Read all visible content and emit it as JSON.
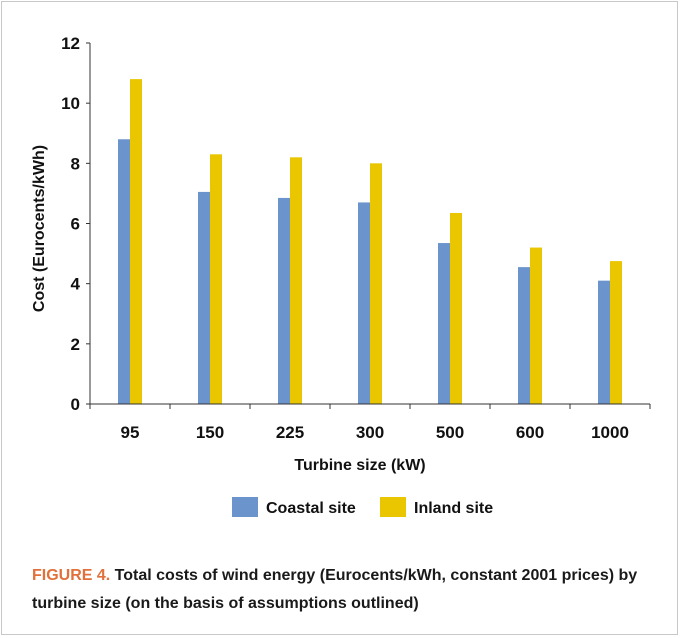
{
  "chart_data": {
    "type": "bar",
    "categories": [
      "95",
      "150",
      "225",
      "300",
      "500",
      "600",
      "1000"
    ],
    "series": [
      {
        "name": "Coastal site",
        "color": "#6b93cc",
        "values": [
          8.8,
          7.05,
          6.85,
          6.7,
          5.35,
          4.55,
          4.1
        ]
      },
      {
        "name": "Inland site",
        "color": "#e9c600",
        "values": [
          10.8,
          8.3,
          8.2,
          8.0,
          6.35,
          5.2,
          4.75
        ]
      }
    ],
    "xlabel": "Turbine size (kW)",
    "ylabel": "Cost (Eurocents/kWh)",
    "ylim": [
      0,
      12
    ],
    "yticks": [
      0,
      2,
      4,
      6,
      8,
      10,
      12
    ],
    "grid": false,
    "legend": "bottom"
  },
  "caption": {
    "label": "FIGURE 4.",
    "text": " Total costs of wind energy (Eurocents/kWh, constant 2001 prices) by turbine size (on the basis of assumptions outlined)"
  }
}
